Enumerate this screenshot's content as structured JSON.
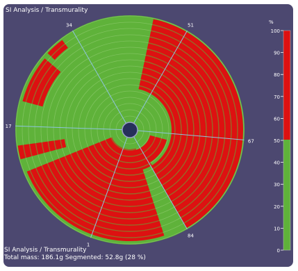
{
  "window": {
    "top_label": "SI Analysis / Transmurality",
    "footer_title": "SI Analysis / Transmurality",
    "footer_stats": "Total mass: 186.1g Segmented: 52.8g (28 %)"
  },
  "polar_map": {
    "spoke_labels": [
      "51",
      "67",
      "84",
      "1",
      "17",
      "34"
    ],
    "center_color": "#26305a",
    "healthy_color": "#5fb23a",
    "scar_color": "#dd1111",
    "spoke_color": "#8fc4e0"
  },
  "colorbar": {
    "unit_label": "%",
    "ticks": [
      "100",
      "90",
      "80",
      "70",
      "60",
      "50",
      "40",
      "30",
      "20",
      "10",
      "0"
    ],
    "threshold": 50,
    "top_color": "#dd1111",
    "bottom_color": "#5fb23a"
  }
}
